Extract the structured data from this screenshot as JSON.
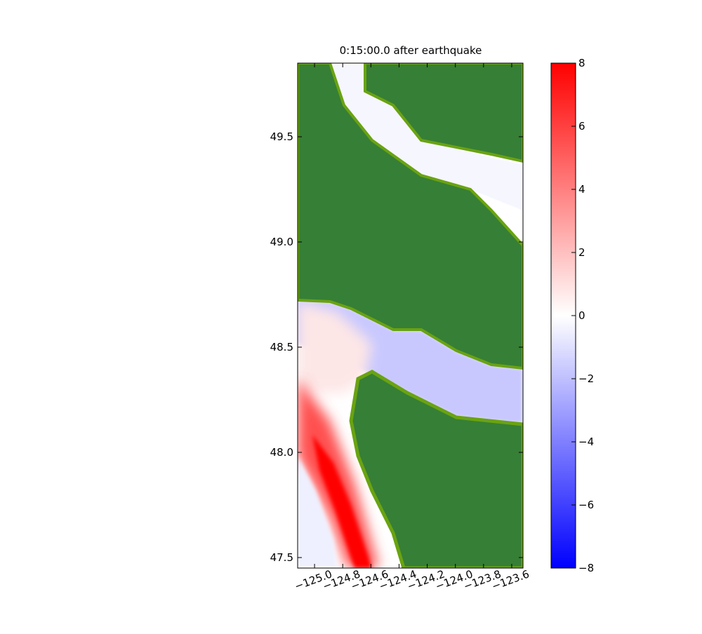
{
  "chart_data": {
    "type": "map",
    "title": "0:15:00.0 after earthquake",
    "xlim": [
      -125.12,
      -123.52
    ],
    "xticks": [
      {
        "value": -125.0,
        "label": "−125.0"
      },
      {
        "value": -124.8,
        "label": "−124.8"
      },
      {
        "value": -124.6,
        "label": "−124.6"
      },
      {
        "value": -124.4,
        "label": "−124.4"
      },
      {
        "value": -124.2,
        "label": "−124.2"
      },
      {
        "value": -124.0,
        "label": "−124.0"
      },
      {
        "value": -123.8,
        "label": "−123.8"
      },
      {
        "value": -123.6,
        "label": "−123.6"
      }
    ],
    "ylim": [
      47.45,
      49.85
    ],
    "yticks": [
      {
        "value": 47.5,
        "label": "47.5"
      },
      {
        "value": 48.0,
        "label": "48.0"
      },
      {
        "value": 48.5,
        "label": "48.5"
      },
      {
        "value": 49.0,
        "label": "49.0"
      },
      {
        "value": 49.5,
        "label": "49.5"
      }
    ],
    "colorbar": {
      "lim": [
        -8,
        8
      ],
      "ticks": [
        {
          "value": -8,
          "label": "−8"
        },
        {
          "value": -6,
          "label": "−6"
        },
        {
          "value": -4,
          "label": "−4"
        },
        {
          "value": -2,
          "label": "−2"
        },
        0,
        2,
        4,
        6,
        8
      ],
      "colors": [
        "#0000ff",
        "#ffffff",
        "#ff0000"
      ]
    }
  }
}
